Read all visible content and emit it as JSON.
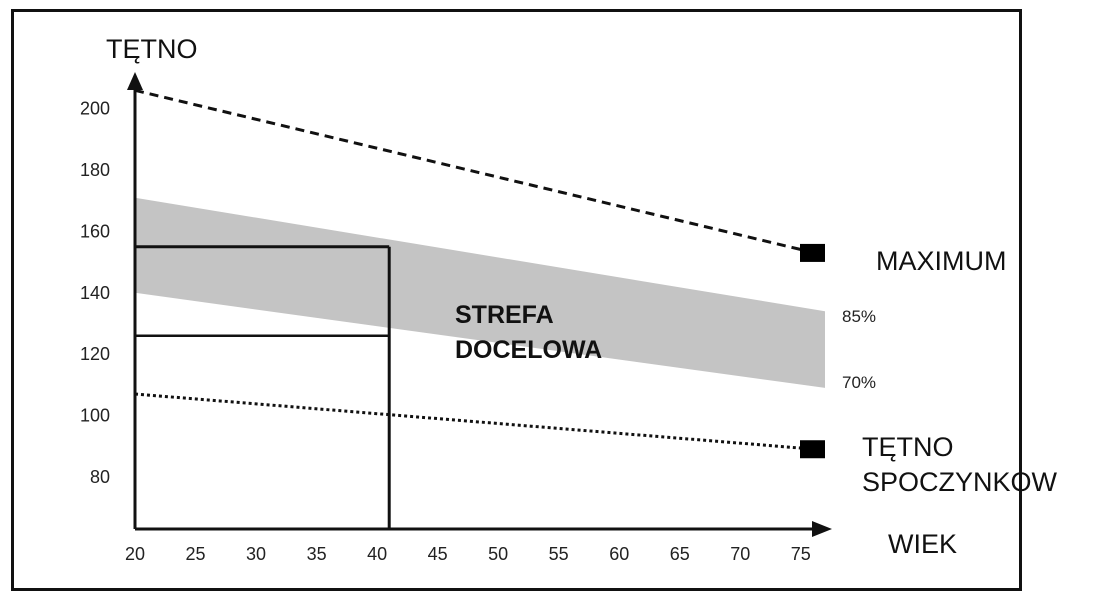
{
  "chart_data": {
    "type": "line",
    "ylabel": "TĘTNO",
    "xlabel": "WIEK",
    "x_ticks": [
      "20",
      "25",
      "30",
      "35",
      "40",
      "45",
      "50",
      "55",
      "60",
      "65",
      "70",
      "75"
    ],
    "y_ticks": [
      "200",
      "180",
      "160",
      "140",
      "120",
      "100",
      "80"
    ],
    "xlim": [
      20,
      77
    ],
    "ylim": [
      63,
      211
    ],
    "series": [
      {
        "name": "MAXIMUM",
        "style": "dashed",
        "points": [
          [
            20,
            206
          ],
          [
            77,
            153
          ]
        ]
      },
      {
        "name": "TĘTNO SPOCZYNKOWE",
        "style": "dotted",
        "points": [
          [
            20,
            107
          ],
          [
            77,
            89
          ]
        ]
      }
    ],
    "band": {
      "upper": [
        [
          20,
          171
        ],
        [
          77,
          134
        ]
      ],
      "lower": [
        [
          20,
          140
        ],
        [
          77,
          109
        ]
      ]
    },
    "upper_label": "85%",
    "lower_label": "70%",
    "zone_label": [
      "STREFA",
      "DOCELOWA"
    ],
    "example": {
      "age": 41,
      "upper": 155,
      "lower": 126
    },
    "series_labels": {
      "maximum": "MAXIMUM",
      "rest_line1": "TĘTNO",
      "rest_line2": "SPOCZYNKOW"
    },
    "colors": {
      "band": "#c4c4c4",
      "line": "#111111",
      "marker": "#000000"
    }
  }
}
